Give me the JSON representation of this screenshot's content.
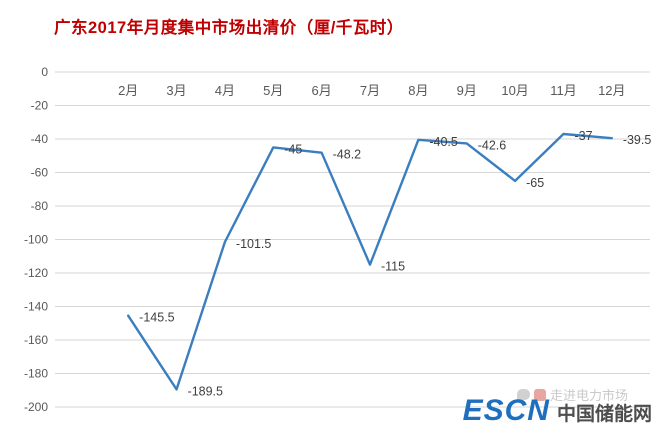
{
  "title": "广东2017年月度集中市场出清价（厘/千瓦时）",
  "chart_data": {
    "type": "line",
    "title": "广东2017年月度集中市场出清价（厘/千瓦时）",
    "categories": [
      "2月",
      "3月",
      "4月",
      "5月",
      "6月",
      "7月",
      "8月",
      "9月",
      "10月",
      "11月",
      "12月"
    ],
    "values": [
      -145.5,
      -189.5,
      -101.5,
      -45,
      -48.2,
      -115,
      -40.5,
      -42.6,
      -65,
      -37,
      -39.5
    ],
    "point_labels": [
      "-145.5",
      "-189.5",
      "-101.5",
      "-45",
      "-48.2",
      "-115",
      "-40.5",
      "-42.6",
      "-65",
      "-37",
      "-39.5"
    ],
    "xlabel": "",
    "ylabel": "",
    "ylim": [
      -200,
      0
    ],
    "ytick_step": 20,
    "grid": true,
    "legend": "none",
    "line_color": "#3A7EBF",
    "grid_color": "#D6D6D6",
    "axis_label_color": "#595959",
    "data_label_color": "#3F3F3F"
  },
  "watermark": {
    "text": "走进电力市场"
  },
  "logo": {
    "escn": "ESCN",
    "site": "中国储能网",
    "escn_color": "#1E6FBD"
  }
}
